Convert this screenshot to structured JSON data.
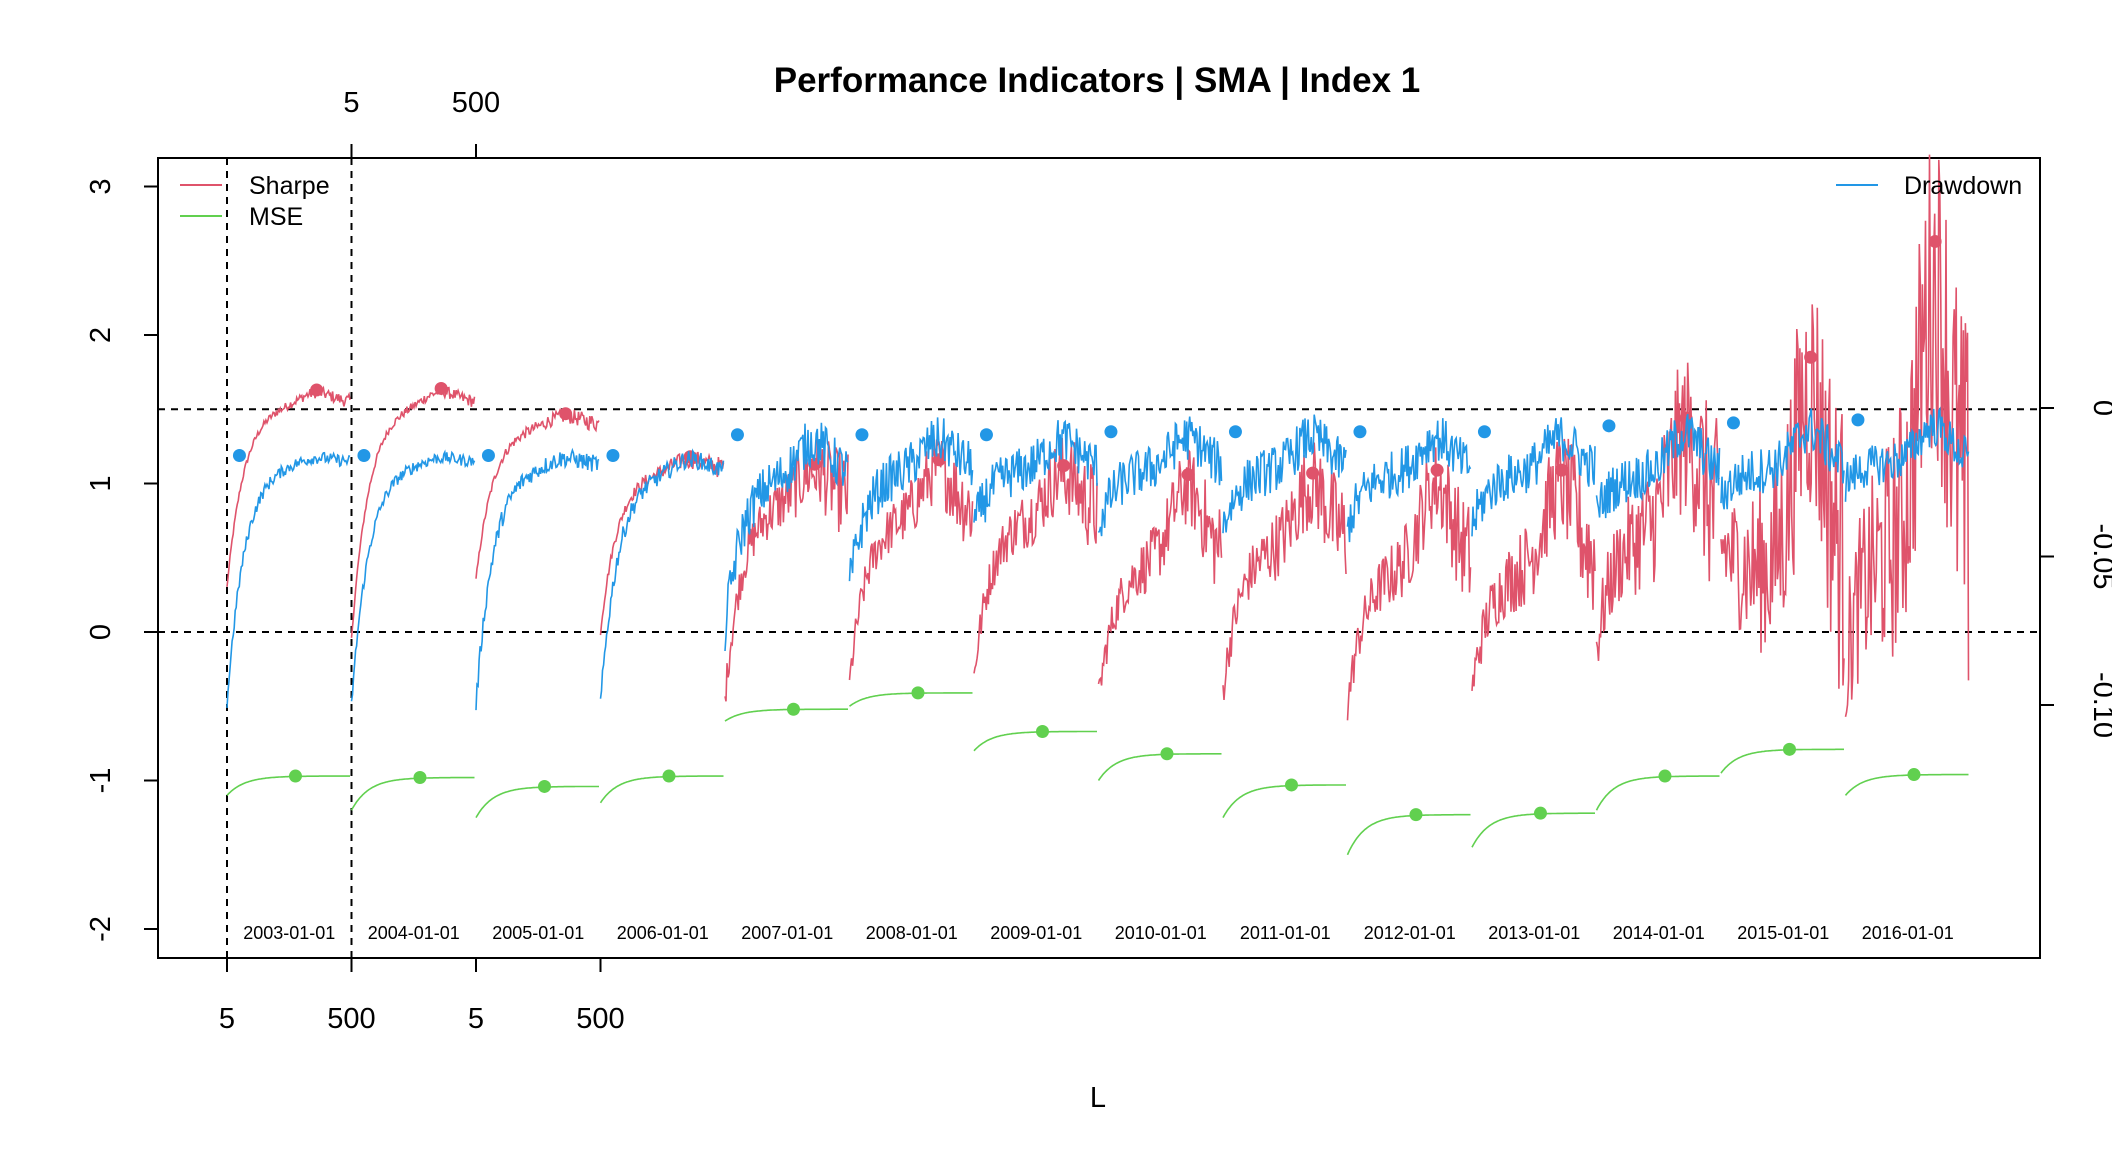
{
  "chart_data": {
    "type": "line",
    "title": "Performance Indicators | SMA | Index 1",
    "xlabel": "L",
    "ylabel": "",
    "ylim": [
      -2.2,
      3.2
    ],
    "y_ticks": [
      -2,
      -1,
      0,
      1,
      2,
      3
    ],
    "y_right_ticks": [
      "0",
      "-0.05",
      "-0.10"
    ],
    "y_right_range": [
      -0.18,
      0.008
    ],
    "x_bottom_ticks": [
      "5",
      "500",
      "5",
      "500"
    ],
    "x_top_ticks": [
      "5",
      "500"
    ],
    "reference_lines": [
      0,
      1.5
    ],
    "segments": [
      "2003-01-01",
      "2004-01-01",
      "2005-01-01",
      "2006-01-01",
      "2007-01-01",
      "2008-01-01",
      "2009-01-01",
      "2010-01-01",
      "2011-01-01",
      "2012-01-01",
      "2013-01-01",
      "2014-01-01",
      "2015-01-01",
      "2016-01-01"
    ],
    "legend_left": [
      "Sharpe",
      "MSE"
    ],
    "legend_right": [
      "Drawdown"
    ],
    "colors": {
      "Sharpe": "#DF536B",
      "MSE": "#61D04F",
      "Drawdown": "#2297E6"
    },
    "series": [
      {
        "name": "Sharpe",
        "axis": "left",
        "start": [
          0.3,
          -0.05,
          0.35,
          0.0,
          -0.45,
          -0.35,
          -0.3,
          -0.45,
          -0.4,
          -0.5,
          -0.4,
          -0.1,
          0.6,
          -0.25
        ],
        "level": [
          1.55,
          1.55,
          1.4,
          1.1,
          0.9,
          0.8,
          0.8,
          0.5,
          0.6,
          0.45,
          0.45,
          0.7,
          0.4,
          0.6
        ],
        "max": [
          1.63,
          1.64,
          1.47,
          1.18,
          1.13,
          1.16,
          1.12,
          1.06,
          1.07,
          1.09,
          1.09,
          1.44,
          1.85,
          2.63
        ],
        "noise": [
          0.03,
          0.03,
          0.04,
          0.05,
          0.2,
          0.2,
          0.22,
          0.22,
          0.25,
          0.25,
          0.3,
          0.45,
          0.7,
          0.9
        ]
      },
      {
        "name": "MSE",
        "axis": "left",
        "start": [
          -1.1,
          -1.2,
          -1.25,
          -1.15,
          -0.6,
          -0.5,
          -0.8,
          -1.0,
          -1.25,
          -1.5,
          -1.45,
          -1.2,
          -0.95,
          -1.1
        ],
        "level": [
          -0.97,
          -0.98,
          -1.04,
          -0.97,
          -0.52,
          -0.41,
          -0.67,
          -0.82,
          -1.03,
          -1.23,
          -1.22,
          -0.97,
          -0.79,
          -0.96
        ],
        "max": [
          -0.97,
          -0.98,
          -1.04,
          -0.97,
          -0.52,
          -0.41,
          -0.67,
          -0.82,
          -1.03,
          -1.23,
          -1.22,
          -0.97,
          -0.79,
          -0.96
        ],
        "noise": [
          0,
          0,
          0,
          0,
          0,
          0,
          0,
          0,
          0,
          0,
          0,
          0,
          0,
          0
        ]
      },
      {
        "name": "Drawdown",
        "axis": "right",
        "start": [
          -0.1,
          -0.1,
          -0.1,
          -0.1,
          -0.075,
          -0.06,
          -0.04,
          -0.04,
          -0.04,
          -0.04,
          -0.04,
          -0.035,
          -0.03,
          -0.025
        ],
        "level": [
          -0.018,
          -0.018,
          -0.019,
          -0.021,
          -0.022,
          -0.02,
          -0.02,
          -0.02,
          -0.02,
          -0.021,
          -0.021,
          -0.022,
          -0.02,
          -0.018
        ],
        "max": [
          -0.016,
          -0.016,
          -0.016,
          -0.016,
          -0.009,
          -0.009,
          -0.009,
          -0.008,
          -0.008,
          -0.008,
          -0.008,
          -0.006,
          -0.005,
          -0.004
        ],
        "noise": [
          0.002,
          0.002,
          0.003,
          0.003,
          0.008,
          0.008,
          0.008,
          0.008,
          0.008,
          0.008,
          0.008,
          0.008,
          0.008,
          0.007
        ]
      }
    ]
  }
}
